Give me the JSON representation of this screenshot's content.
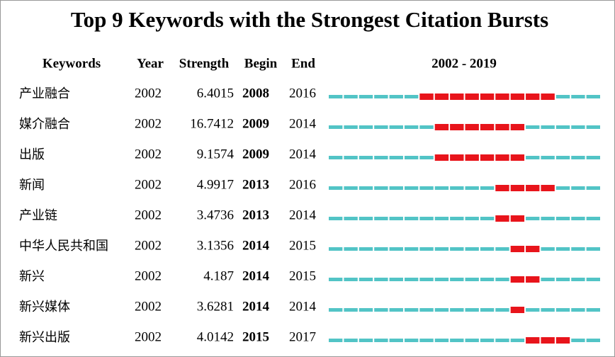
{
  "title": "Top 9 Keywords with the Strongest Citation Bursts",
  "table": {
    "columns": [
      "Keywords",
      "Year",
      "Strength",
      "Begin",
      "End",
      "2002 - 2019"
    ],
    "rows": [
      [
        "产业融合",
        2002,
        6.4015,
        2008,
        2016
      ],
      [
        "媒介融合",
        2002,
        16.7412,
        2009,
        2014
      ],
      [
        "出版",
        2002,
        9.1574,
        2009,
        2014
      ],
      [
        "新闻",
        2002,
        4.9917,
        2013,
        2016
      ],
      [
        "产业链",
        2002,
        3.4736,
        2013,
        2014
      ],
      [
        "中华人民共和国",
        2002,
        3.1356,
        2014,
        2015
      ],
      [
        "新兴",
        2002,
        4.187,
        2014,
        2015
      ],
      [
        "新兴媒体",
        2002,
        3.6281,
        2014,
        2014
      ],
      [
        "新兴出版",
        2002,
        4.0142,
        2015,
        2017
      ]
    ]
  }
}
